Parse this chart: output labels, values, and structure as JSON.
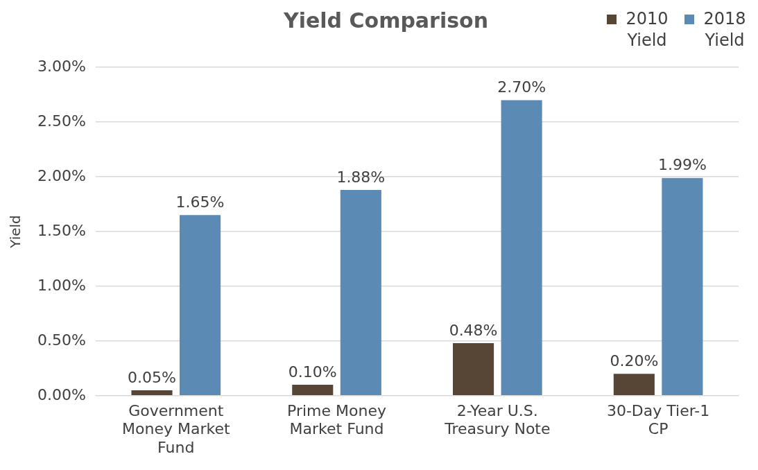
{
  "chart_data": {
    "type": "bar",
    "title": "Yield Comparison",
    "ylabel": "Yield",
    "categories": [
      "Government Money Market Fund",
      "Prime Money Market Fund",
      "2-Year U.S. Treasury Note",
      "30-Day Tier-1 CP"
    ],
    "series": [
      {
        "name": "2010 Yield",
        "color": "#574535",
        "values": [
          0.05,
          0.1,
          0.48,
          0.2
        ],
        "value_labels": [
          "0.05%",
          "0.10%",
          "0.48%",
          "0.20%"
        ]
      },
      {
        "name": "2018 Yield",
        "color": "#5b8ab5",
        "values": [
          1.65,
          1.88,
          2.7,
          1.99
        ],
        "value_labels": [
          "1.65%",
          "1.88%",
          "2.70%",
          "1.99%"
        ]
      }
    ],
    "ylim": [
      0,
      3
    ],
    "yticks": [
      {
        "value": 0,
        "label": "0.00%"
      },
      {
        "value": 0.5,
        "label": "0.50%"
      },
      {
        "value": 1,
        "label": "1.00%"
      },
      {
        "value": 1.5,
        "label": "1.50%"
      },
      {
        "value": 2,
        "label": "2.00%"
      },
      {
        "value": 2.5,
        "label": "2.50%"
      },
      {
        "value": 3,
        "label": "3.00%"
      }
    ],
    "grid": "y",
    "legend": "top right"
  }
}
